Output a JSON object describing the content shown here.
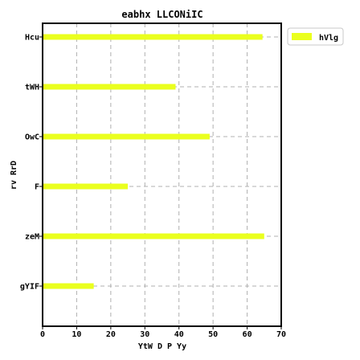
{
  "chart_data": {
    "type": "bar",
    "orientation": "horizontal",
    "title": "eabhx LLCONiIC",
    "xlabel": "YtW D P Yy",
    "ylabel": "rv RrD",
    "categories": [
      "Hcu",
      "tWH",
      "OwC",
      "F",
      "zeM",
      "gYIF"
    ],
    "series": [
      {
        "name": "hVlg",
        "values": [
          64.5,
          39,
          49,
          25,
          65,
          15
        ],
        "color": "#eaff1e"
      }
    ],
    "xlim": [
      0,
      70
    ],
    "xticks": [
      "0",
      "10",
      "20",
      "30",
      "40",
      "50",
      "60",
      "70"
    ],
    "grid": true,
    "legend_position": "top-right"
  }
}
